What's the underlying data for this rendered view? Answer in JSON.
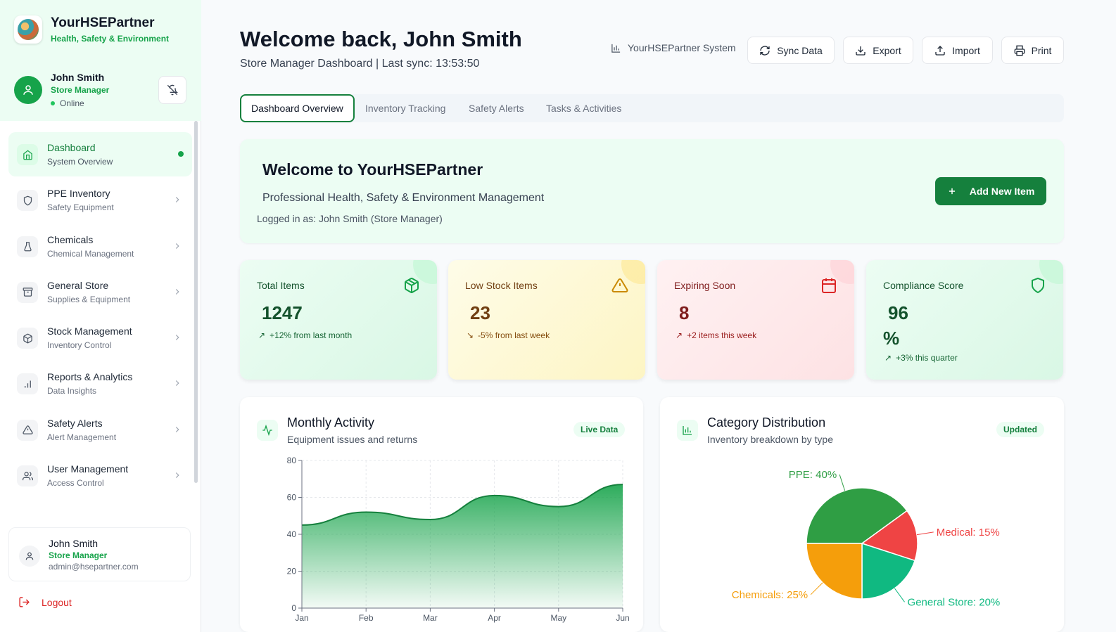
{
  "brand": {
    "name": "YourHSEPartner",
    "subtitle": "Health, Safety & Environment"
  },
  "user": {
    "name": "John Smith",
    "role": "Store Manager",
    "status": "Online"
  },
  "nav": [
    {
      "label": "Dashboard",
      "sub": "System Overview",
      "icon": "home-icon",
      "active": true
    },
    {
      "label": "PPE Inventory",
      "sub": "Safety Equipment",
      "icon": "shield-icon"
    },
    {
      "label": "Chemicals",
      "sub": "Chemical Management",
      "icon": "flask-icon"
    },
    {
      "label": "General Store",
      "sub": "Supplies & Equipment",
      "icon": "archive-icon"
    },
    {
      "label": "Stock Management",
      "sub": "Inventory Control",
      "icon": "package-icon"
    },
    {
      "label": "Reports & Analytics",
      "sub": "Data Insights",
      "icon": "bar-chart-icon"
    },
    {
      "label": "Safety Alerts",
      "sub": "Alert Management",
      "icon": "alert-icon"
    },
    {
      "label": "User Management",
      "sub": "Access Control",
      "icon": "users-icon"
    }
  ],
  "footer_user": {
    "name": "John Smith",
    "role": "Store Manager",
    "email": "admin@hsepartner.com"
  },
  "logout_label": "Logout",
  "header": {
    "title": "Welcome back, John Smith",
    "subtitle": "Store Manager Dashboard | Last sync: 13:53:50",
    "system_label": "YourHSEPartner System",
    "buttons": {
      "sync": "Sync Data",
      "export": "Export",
      "import": "Import",
      "print": "Print"
    }
  },
  "tabs": [
    "Dashboard Overview",
    "Inventory Tracking",
    "Safety Alerts",
    "Tasks & Activities"
  ],
  "welcome": {
    "title": "Welcome to YourHSEPartner",
    "subtitle": "Professional Health, Safety & Environment Management",
    "logged_in": "Logged in as: John Smith (Store Manager)",
    "add_button": "Add New Item"
  },
  "stats": [
    {
      "title": "Total Items",
      "value": "1247",
      "trend": "+12% from last month",
      "color": "#15803d"
    },
    {
      "title": "Low Stock Items",
      "value": "23",
      "trend": "-5% from last week",
      "color": "#a16207"
    },
    {
      "title": "Expiring Soon",
      "value": "8",
      "trend": "+2 items this week",
      "color": "#b91c1c"
    },
    {
      "title": "Compliance Score",
      "value": "96",
      "unit": "%",
      "trend": "+3% this quarter",
      "color": "#15803d"
    }
  ],
  "monthly": {
    "title": "Monthly Activity",
    "subtitle": "Equipment issues and returns",
    "badge": "Live Data"
  },
  "category": {
    "title": "Category Distribution",
    "subtitle": "Inventory breakdown by type",
    "badge": "Updated"
  },
  "chart_data": [
    {
      "type": "area",
      "x": [
        "Jan",
        "Feb",
        "Mar",
        "Apr",
        "May",
        "Jun"
      ],
      "y": [
        45,
        52,
        48,
        61,
        55,
        67
      ],
      "ylim": [
        0,
        80
      ],
      "yticks": [
        0,
        20,
        40,
        60,
        80
      ],
      "grid": true,
      "color": "#16a34a"
    },
    {
      "type": "pie",
      "slices": [
        {
          "label": "PPE: 40%",
          "value": 40,
          "color": "#2f9e44"
        },
        {
          "label": "Medical: 15%",
          "value": 15,
          "color": "#ef4444"
        },
        {
          "label": "General Store: 20%",
          "value": 20,
          "color": "#10b981"
        },
        {
          "label": "Chemicals: 25%",
          "value": 25,
          "color": "#f59e0b"
        }
      ]
    }
  ]
}
